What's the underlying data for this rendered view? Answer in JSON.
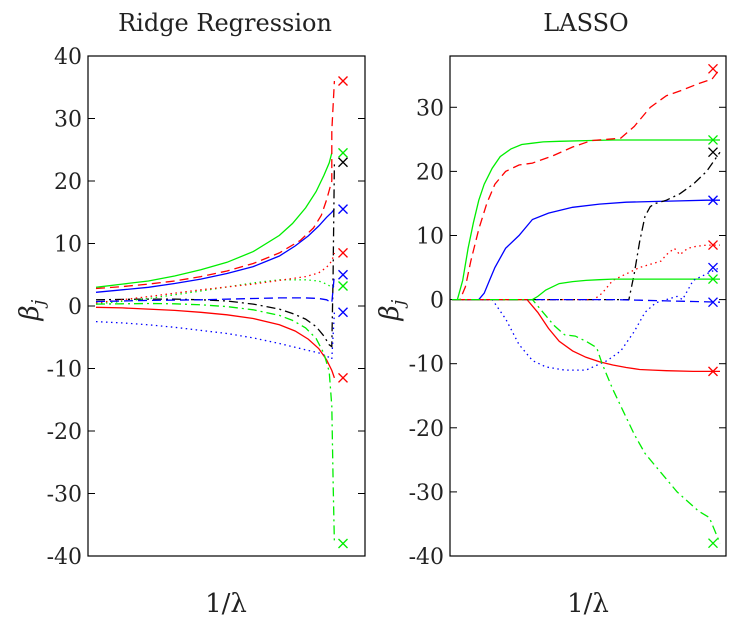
{
  "chart_data": [
    {
      "type": "line",
      "title": "Ridge Regression",
      "xlabel": "1/λ",
      "ylabel": "β_j",
      "ylim": [
        -40,
        40
      ],
      "yticks": [
        40,
        30,
        20,
        10,
        0,
        -10,
        -20,
        -30,
        -40
      ],
      "ytick_labels": [
        "40",
        "30",
        "20",
        "10",
        "0",
        "-10",
        "-20",
        "-30",
        "-40"
      ],
      "xlim": [
        0,
        1
      ],
      "grid": false,
      "series": [
        {
          "color": "#00ee00",
          "style": "solid",
          "x": [
            0,
            0.1,
            0.2,
            0.3,
            0.4,
            0.5,
            0.6,
            0.7,
            0.75,
            0.8,
            0.84,
            0.87,
            0.89,
            0.9
          ],
          "y": [
            3,
            3.5,
            4,
            4.8,
            5.8,
            7,
            8.7,
            11.3,
            13.2,
            15.7,
            18.3,
            20.9,
            22.9,
            24.5
          ],
          "end": 24.5
        },
        {
          "color": "#ff0000",
          "style": "dashed",
          "x": [
            0,
            0.1,
            0.2,
            0.3,
            0.4,
            0.5,
            0.6,
            0.7,
            0.78,
            0.83,
            0.86,
            0.88,
            0.9,
            0.9,
            0.91
          ],
          "y": [
            2.8,
            3.1,
            3.5,
            4,
            4.7,
            5.6,
            6.8,
            8.5,
            10.5,
            12.5,
            14.5,
            17,
            20,
            28,
            36
          ],
          "end": 36
        },
        {
          "color": "#0000ff",
          "style": "solid",
          "x": [
            0,
            0.1,
            0.2,
            0.3,
            0.4,
            0.5,
            0.6,
            0.7,
            0.76,
            0.81,
            0.85,
            0.88,
            0.9,
            0.91
          ],
          "y": [
            2.2,
            2.6,
            3,
            3.6,
            4.3,
            5.2,
            6.3,
            8,
            9.6,
            11.2,
            12.8,
            14.2,
            15,
            15.5
          ],
          "end": 15.5
        },
        {
          "color": "#000000",
          "style": "dashdot",
          "x": [
            0,
            0.1,
            0.2,
            0.3,
            0.4,
            0.5,
            0.6,
            0.7,
            0.75,
            0.8,
            0.84,
            0.87,
            0.89,
            0.9,
            0.905,
            0.91
          ],
          "y": [
            1,
            1.05,
            1.1,
            1.1,
            1,
            0.8,
            0.3,
            -0.5,
            -1.2,
            -2.1,
            -3.3,
            -4.8,
            -6.2,
            -6.5,
            5,
            23
          ],
          "end": 23
        },
        {
          "color": "#00ee00",
          "style": "dotted",
          "x": [
            0,
            0.2,
            0.4,
            0.6,
            0.7,
            0.8,
            0.85,
            0.88,
            0.9,
            0.91
          ],
          "y": [
            0.3,
            1.2,
            2.4,
            3.7,
            4.2,
            4.2,
            4,
            3.5,
            3,
            3.2
          ],
          "end": 3.2
        },
        {
          "color": "#ff0000",
          "style": "dotted",
          "x": [
            0,
            0.2,
            0.4,
            0.6,
            0.7,
            0.8,
            0.85,
            0.88,
            0.9,
            0.91
          ],
          "y": [
            0.5,
            1.5,
            2.6,
            3.5,
            4.1,
            4.7,
            5.3,
            6.2,
            7.2,
            8.5
          ],
          "end": 8.5
        },
        {
          "color": "#0000ff",
          "style": "dashed",
          "x": [
            0,
            0.2,
            0.4,
            0.6,
            0.7,
            0.8,
            0.85,
            0.88,
            0.9,
            0.91
          ],
          "y": [
            0.7,
            0.9,
            1,
            1.2,
            1.3,
            1.3,
            1.2,
            1,
            0.5,
            5
          ],
          "end": 5
        },
        {
          "color": "#0000ff",
          "style": "dotted",
          "x": [
            0,
            0.1,
            0.2,
            0.3,
            0.4,
            0.5,
            0.6,
            0.7,
            0.8,
            0.85,
            0.88,
            0.9,
            0.91
          ],
          "y": [
            -2.5,
            -2.7,
            -3,
            -3.4,
            -3.9,
            -4.4,
            -5.1,
            -6,
            -7,
            -7.5,
            -8,
            -8.5,
            -1
          ],
          "end": -1
        },
        {
          "color": "#ff0000",
          "style": "solid",
          "x": [
            0,
            0.1,
            0.2,
            0.3,
            0.4,
            0.5,
            0.6,
            0.7,
            0.76,
            0.81,
            0.85,
            0.88,
            0.9,
            0.91
          ],
          "y": [
            -0.2,
            -0.3,
            -0.5,
            -0.7,
            -1,
            -1.4,
            -2,
            -3,
            -4,
            -5.3,
            -6.8,
            -8.6,
            -10.3,
            -11.5
          ],
          "end": -11.5
        },
        {
          "color": "#00ee00",
          "style": "dashdot",
          "x": [
            0,
            0.1,
            0.2,
            0.3,
            0.4,
            0.5,
            0.6,
            0.7,
            0.75,
            0.8,
            0.84,
            0.87,
            0.89,
            0.9,
            0.905,
            0.91
          ],
          "y": [
            0.3,
            0.35,
            0.4,
            0.35,
            0.2,
            -0.1,
            -0.6,
            -1.5,
            -2.3,
            -3.5,
            -5.2,
            -7.6,
            -10.5,
            -16,
            -28,
            -38
          ],
          "end": -38
        }
      ]
    },
    {
      "type": "line",
      "title": "LASSO",
      "xlabel": "1/λ",
      "ylabel": "β_j",
      "ylim": [
        -40,
        38
      ],
      "yticks": [
        30,
        20,
        10,
        0,
        -10,
        -20,
        -30,
        -40
      ],
      "ytick_labels": [
        "30",
        "20",
        "10",
        "0",
        "-10",
        "-20",
        "-30",
        "-40"
      ],
      "xlim": [
        0,
        1
      ],
      "grid": false,
      "series": [
        {
          "color": "#00ee00",
          "style": "solid",
          "x": [
            0,
            0.02,
            0.04,
            0.06,
            0.08,
            0.1,
            0.12,
            0.15,
            0.18,
            0.22,
            0.26,
            0.3,
            0.34,
            0.4,
            0.5,
            0.6,
            0.7,
            0.8,
            0.9,
            1
          ],
          "y": [
            0,
            0,
            3,
            8,
            12,
            15.5,
            18,
            20.5,
            22.3,
            23.5,
            24.2,
            24.4,
            24.6,
            24.7,
            24.8,
            24.9,
            24.9,
            24.9,
            24.9,
            24.9
          ],
          "end": 24.9
        },
        {
          "color": "#ff0000",
          "style": "dashed",
          "x": [
            0,
            0.03,
            0.05,
            0.07,
            0.1,
            0.13,
            0.16,
            0.2,
            0.25,
            0.3,
            0.38,
            0.45,
            0.52,
            0.58,
            0.63,
            0.68,
            0.74,
            0.8,
            0.86,
            0.92,
            0.97,
            1
          ],
          "y": [
            0,
            0,
            2,
            6,
            11,
            15,
            18,
            20,
            21,
            21.3,
            22.5,
            23.8,
            24.8,
            25,
            25.2,
            27,
            30,
            31.8,
            32.7,
            33.7,
            34.4,
            36
          ],
          "end": 36
        },
        {
          "color": "#0000ff",
          "style": "solid",
          "x": [
            0,
            0.1,
            0.12,
            0.14,
            0.16,
            0.2,
            0.25,
            0.3,
            0.36,
            0.45,
            0.55,
            0.65,
            0.75,
            0.85,
            0.95,
            1
          ],
          "y": [
            0,
            0,
            1,
            3,
            5,
            8,
            10,
            12.5,
            13.5,
            14.4,
            14.9,
            15.2,
            15.3,
            15.4,
            15.5,
            15.5
          ],
          "end": 15.5
        },
        {
          "color": "#000000",
          "style": "dashdot",
          "x": [
            0,
            0.66,
            0.68,
            0.7,
            0.72,
            0.74,
            0.76,
            0.8,
            0.85,
            0.9,
            0.95,
            1
          ],
          "y": [
            0,
            0,
            4,
            9,
            13,
            14.5,
            15,
            15.5,
            16.5,
            18,
            20,
            23
          ],
          "end": 23
        },
        {
          "color": "#ff0000",
          "style": "dotted",
          "x": [
            0,
            0.53,
            0.56,
            0.6,
            0.65,
            0.7,
            0.74,
            0.78,
            0.8,
            0.83,
            0.85,
            0.88,
            0.91,
            0.95,
            1
          ],
          "y": [
            0,
            0,
            1,
            3,
            4,
            5,
            5.5,
            6,
            7,
            8,
            7,
            8,
            8.3,
            8.5,
            8.5
          ],
          "end": 8.5
        },
        {
          "color": "#00ee00",
          "style": "solid",
          "x": [
            0,
            0.3,
            0.32,
            0.35,
            0.4,
            0.45,
            0.5,
            0.55,
            0.6,
            0.7,
            0.8,
            0.9,
            1
          ],
          "y": [
            0,
            0,
            0.5,
            1.5,
            2.5,
            2.8,
            3,
            3.1,
            3.2,
            3.2,
            3.2,
            3.2,
            3.2
          ],
          "end": 3.2
        },
        {
          "color": "#0000ff",
          "style": "dotted",
          "x": [
            0,
            0.15,
            0.2,
            0.25,
            0.3,
            0.35,
            0.42,
            0.5,
            0.58,
            0.63,
            0.68,
            0.72,
            0.76,
            0.8,
            0.84,
            0.86,
            0.9,
            0.95,
            1
          ],
          "y": [
            0,
            0,
            -3,
            -7,
            -9.5,
            -10.5,
            -11,
            -11,
            -9.5,
            -8,
            -5,
            -2,
            -0.5,
            0,
            0.5,
            0,
            3,
            4,
            5
          ],
          "end": 5
        },
        {
          "color": "#0000ff",
          "style": "dashed",
          "x": [
            0,
            0.6,
            0.7,
            0.8,
            0.9,
            1
          ],
          "y": [
            0,
            0,
            -0.1,
            -0.2,
            -0.3,
            -0.4
          ],
          "end": -0.4
        },
        {
          "color": "#ff0000",
          "style": "solid",
          "x": [
            0,
            0.28,
            0.32,
            0.36,
            0.4,
            0.45,
            0.5,
            0.55,
            0.6,
            0.65,
            0.7,
            0.75,
            0.8,
            0.9,
            1
          ],
          "y": [
            0,
            0,
            -2,
            -4.5,
            -6.5,
            -8,
            -9,
            -9.7,
            -10.2,
            -10.6,
            -10.9,
            -11,
            -11.1,
            -11.2,
            -11.2
          ],
          "end": -11.2
        },
        {
          "color": "#00ee00",
          "style": "dashdot",
          "x": [
            0,
            0.3,
            0.34,
            0.38,
            0.42,
            0.46,
            0.5,
            0.54,
            0.56,
            0.6,
            0.64,
            0.68,
            0.72,
            0.76,
            0.8,
            0.84,
            0.88,
            0.92,
            0.96,
            1
          ],
          "y": [
            0,
            0,
            -2,
            -4,
            -5.5,
            -5.7,
            -6.5,
            -7.5,
            -10,
            -14,
            -17.5,
            -21,
            -24,
            -26,
            -28,
            -30,
            -31.5,
            -33,
            -34,
            -38
          ],
          "end": -38
        }
      ]
    }
  ]
}
